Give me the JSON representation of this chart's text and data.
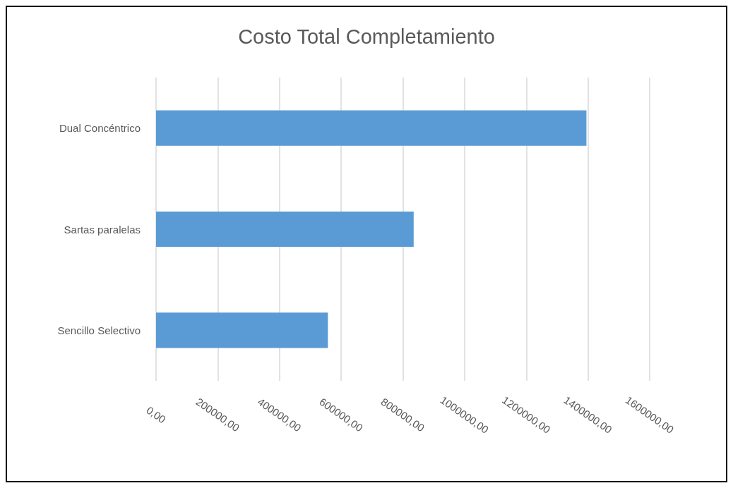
{
  "chart_data": {
    "type": "bar",
    "orientation": "horizontal",
    "title": "Costo Total Completamiento",
    "categories": [
      "Dual Concéntrico",
      "Sartas paralelas",
      "Sencillo Selectivo"
    ],
    "values": [
      1395000,
      835000,
      557000
    ],
    "color": "#5b9bd5",
    "xlim": [
      0,
      1600000
    ],
    "xticks": [
      {
        "value": 0,
        "label": "0,00"
      },
      {
        "value": 200000,
        "label": "200000,00"
      },
      {
        "value": 400000,
        "label": "400000,00"
      },
      {
        "value": 600000,
        "label": "600000,00"
      },
      {
        "value": 800000,
        "label": "800000,00"
      },
      {
        "value": 1000000,
        "label": "1000000,00"
      },
      {
        "value": 1200000,
        "label": "1200000,00"
      },
      {
        "value": 1400000,
        "label": "1400000,00"
      },
      {
        "value": 1600000,
        "label": "1600000,00"
      }
    ],
    "grid": true
  }
}
